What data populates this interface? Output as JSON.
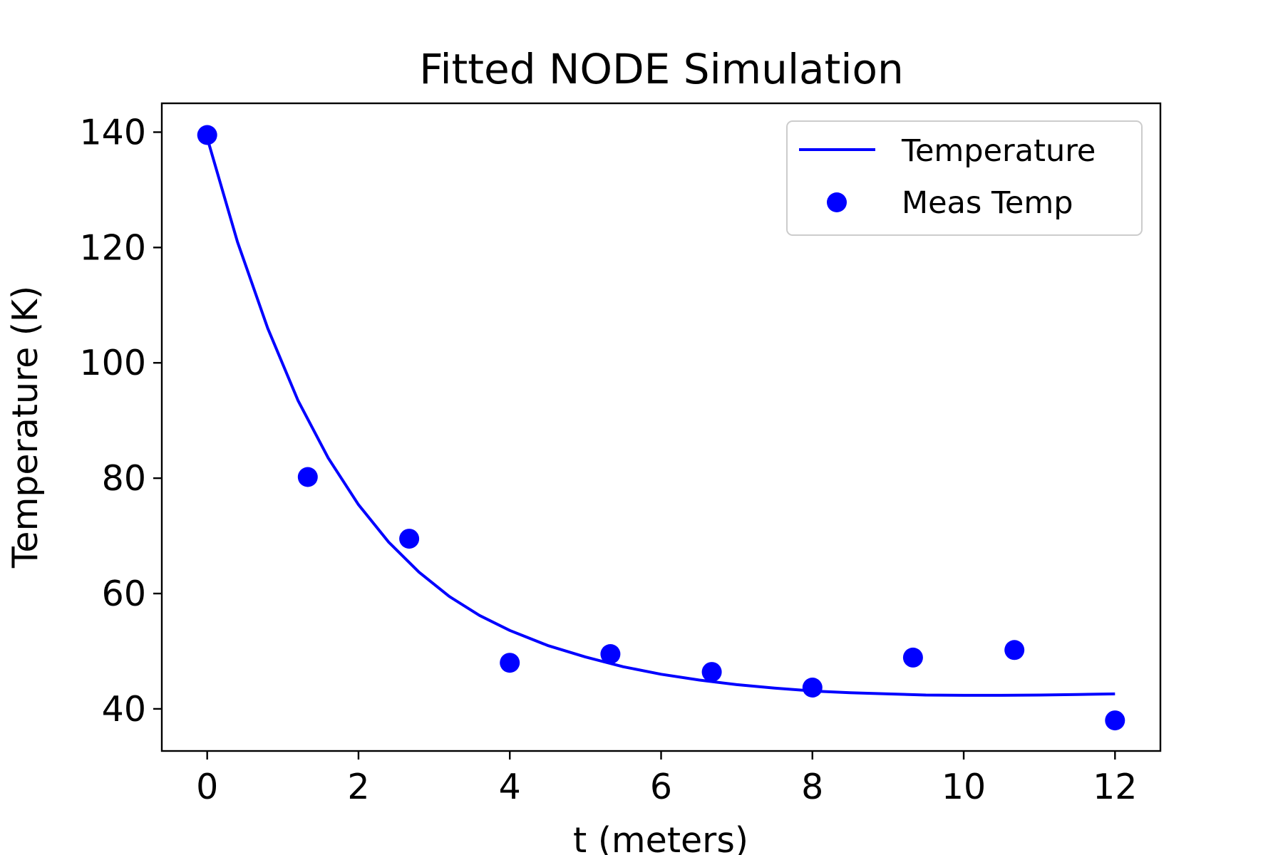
{
  "chart_data": {
    "type": "line",
    "title": "Fitted NODE Simulation",
    "xlabel": "t (meters)",
    "ylabel": "Temperature (K)",
    "xlim": [
      -0.6,
      12.6
    ],
    "ylim": [
      32.7,
      145.0
    ],
    "xticks": [
      0,
      2,
      4,
      6,
      8,
      10,
      12
    ],
    "yticks": [
      40,
      60,
      80,
      100,
      120,
      140
    ],
    "grid": false,
    "legend_position": "top-right",
    "color": "#0000ff",
    "series": [
      {
        "name": "Temperature",
        "kind": "line",
        "x": [
          0.0,
          0.4,
          0.8,
          1.2,
          1.6,
          2.0,
          2.4,
          2.8,
          3.2,
          3.6,
          4.0,
          4.5,
          5.0,
          5.5,
          6.0,
          6.5,
          7.0,
          7.5,
          8.0,
          8.5,
          9.0,
          9.5,
          10.0,
          10.5,
          11.0,
          11.5,
          12.0
        ],
        "y": [
          139.0,
          121.0,
          106.0,
          93.5,
          83.5,
          75.4,
          68.9,
          63.7,
          59.5,
          56.2,
          53.6,
          51.0,
          49.0,
          47.3,
          46.0,
          45.0,
          44.2,
          43.6,
          43.1,
          42.8,
          42.6,
          42.4,
          42.35,
          42.35,
          42.4,
          42.5,
          42.6
        ]
      },
      {
        "name": "Meas Temp",
        "kind": "scatter",
        "x": [
          0.0,
          1.33,
          2.67,
          4.0,
          5.33,
          6.67,
          8.0,
          9.33,
          10.67,
          12.0
        ],
        "y": [
          139.5,
          80.2,
          69.5,
          48.0,
          49.5,
          46.4,
          43.7,
          48.9,
          50.2,
          38.0
        ]
      }
    ]
  }
}
